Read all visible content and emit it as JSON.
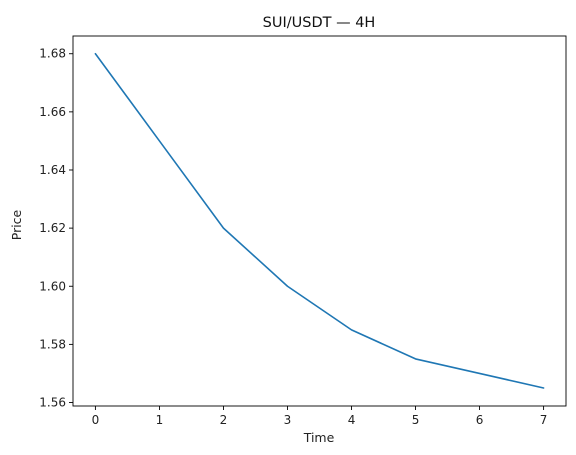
{
  "chart_data": {
    "type": "line",
    "title": "SUI/USDT — 4H",
    "xlabel": "Time",
    "ylabel": "Price",
    "xlim": [
      -0.35,
      7.35
    ],
    "ylim": [
      1.5588,
      1.6861
    ],
    "xticks": [
      0,
      1,
      2,
      3,
      4,
      5,
      6,
      7
    ],
    "yticks": [
      1.56,
      1.58,
      1.6,
      1.62,
      1.64,
      1.66,
      1.68
    ],
    "ytick_labels": [
      "1.56",
      "1.58",
      "1.60",
      "1.62",
      "1.64",
      "1.66",
      "1.68"
    ],
    "grid": false,
    "series": [
      {
        "color": "#1f77b4",
        "x": [
          0,
          1,
          2,
          3,
          4,
          5,
          6,
          7
        ],
        "y": [
          1.68,
          1.65,
          1.62,
          1.6,
          1.585,
          1.575,
          1.57,
          1.565
        ]
      }
    ]
  }
}
